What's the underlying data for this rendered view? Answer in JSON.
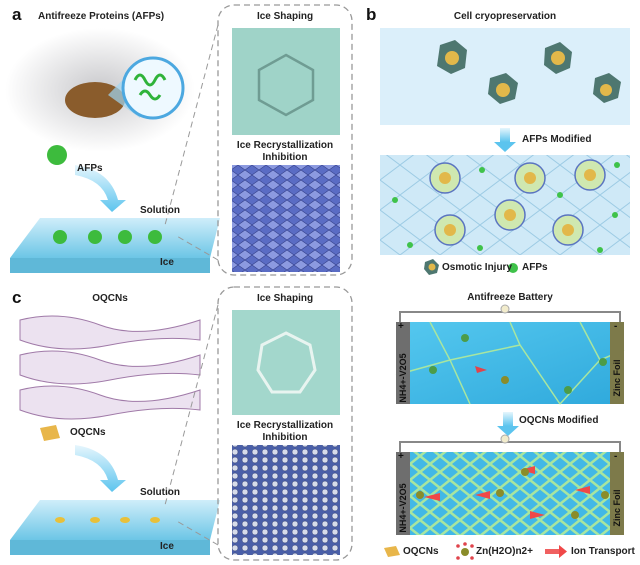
{
  "panel_a": {
    "letter": "a",
    "title": "Antifreeze Proteins (AFPs)",
    "agent_label": "AFPs",
    "solution_label": "Solution",
    "ice_label": "Ice",
    "inset_top_title": "Ice Shaping",
    "inset_bottom_title_line1": "Ice Recrystallization",
    "inset_bottom_title_line2": "Inhibition"
  },
  "panel_b": {
    "letter": "b",
    "title": "Cell cryopreservation",
    "arrow_label": "AFPs Modified",
    "legend": [
      {
        "label": "Osmotic Injury",
        "icon": "damaged-cell-icon"
      },
      {
        "label": "AFPs",
        "icon": "green-dot-icon",
        "color": "#3fc24a"
      }
    ]
  },
  "panel_c": {
    "letter": "c",
    "title": "OQCNs",
    "agent_label": "OQCNs",
    "solution_label": "Solution",
    "ice_label": "Ice",
    "inset_top_title": "Ice Shaping",
    "inset_bottom_title_line1": "Ice Recrystallization",
    "inset_bottom_title_line2": "Inhibition",
    "battery_title": "Antifreeze Battery",
    "cathode_label": "NH4+-V2O5",
    "anode_label": "Zinc Foil",
    "plus": "+",
    "minus": "-",
    "arrow_label": "OQCNs Modified",
    "legend": [
      {
        "label": "OQCNs",
        "icon": "nanosheet-icon",
        "color": "#e8b64a"
      },
      {
        "label": "Zn(H2O)n2+",
        "icon": "hydrated-zinc-icon"
      },
      {
        "label": "Ion Transport",
        "icon": "red-arrow-icon",
        "color": "#f04848"
      }
    ]
  },
  "colors": {
    "ice_blue": "#4fc3ea",
    "grain_boundary": "#a8e6a0",
    "electrode_gray": "#6e6e6e",
    "zinc": "#7d7a4a"
  }
}
